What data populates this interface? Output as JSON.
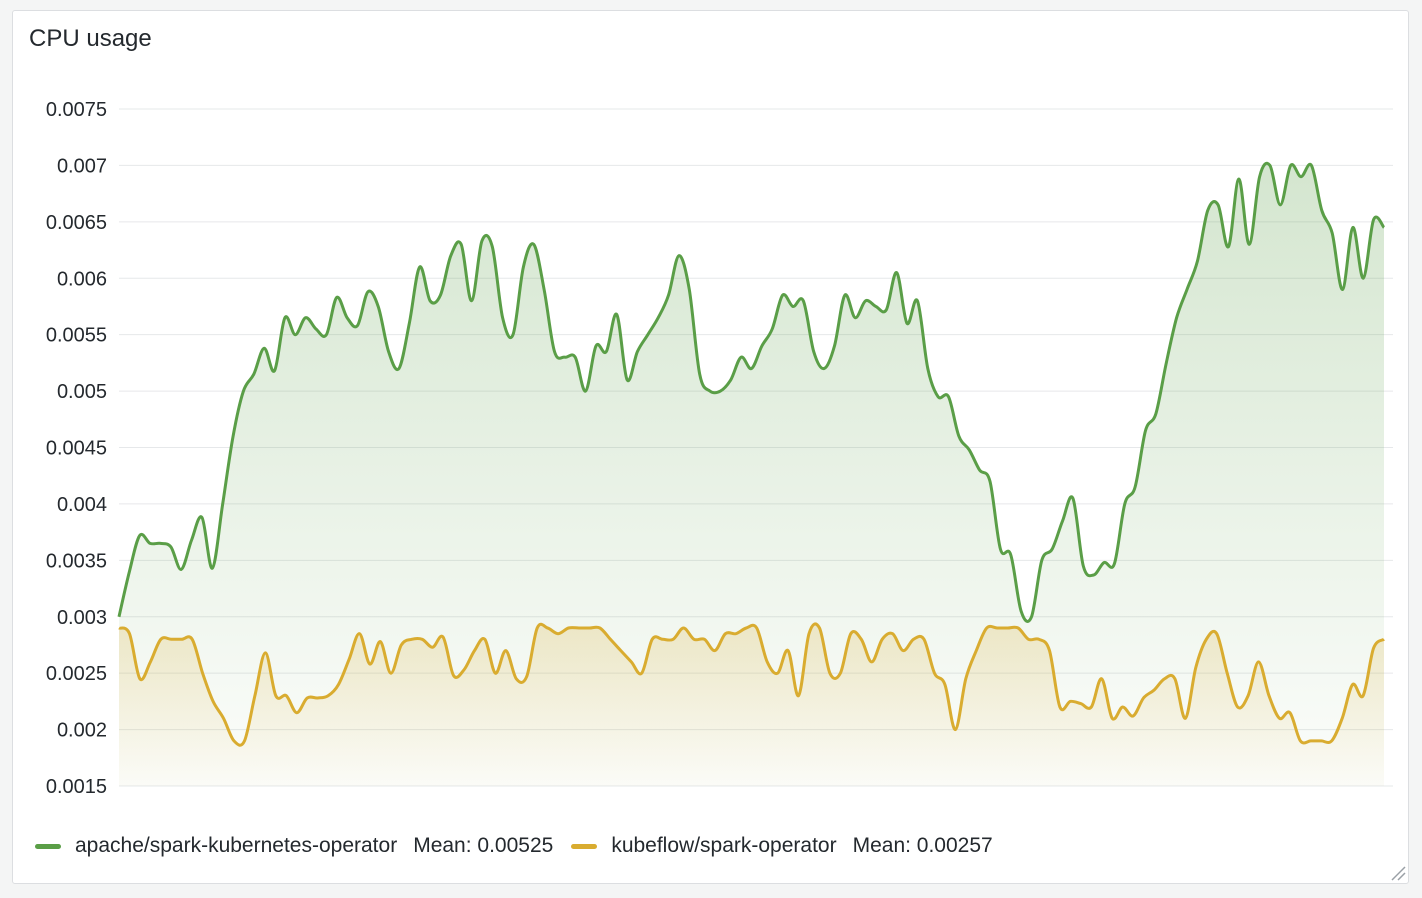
{
  "panel": {
    "title": "CPU usage"
  },
  "colors": {
    "series1": "#5a9e47",
    "series2": "#d9ac30",
    "grid": "#e6e8ea"
  },
  "chart_data": {
    "type": "area",
    "title": "CPU usage",
    "ylim": [
      0.0015,
      0.0075
    ],
    "yticks": [
      "0.0075",
      "0.007",
      "0.0065",
      "0.006",
      "0.0055",
      "0.005",
      "0.0045",
      "0.004",
      "0.0035",
      "0.003",
      "0.0025",
      "0.002",
      "0.0015"
    ],
    "grid": true,
    "legend": "bottom",
    "series": [
      {
        "name": "apache/spark-kubernetes-operator",
        "mean_label": "Mean: 0.00525",
        "color": "#5a9e47",
        "values": [
          0.003,
          0.0034,
          0.00372,
          0.00365,
          0.00365,
          0.00362,
          0.00342,
          0.00368,
          0.00388,
          0.00343,
          0.004,
          0.0046,
          0.005,
          0.00515,
          0.00538,
          0.00518,
          0.00565,
          0.0055,
          0.00565,
          0.00555,
          0.0055,
          0.00583,
          0.00565,
          0.00558,
          0.00588,
          0.00575,
          0.00535,
          0.0052,
          0.0056,
          0.0061,
          0.0058,
          0.00585,
          0.0062,
          0.0063,
          0.0058,
          0.00633,
          0.00628,
          0.00565,
          0.0055,
          0.0061,
          0.0063,
          0.0059,
          0.00535,
          0.0053,
          0.0053,
          0.005,
          0.0054,
          0.00535,
          0.00568,
          0.0051,
          0.00535,
          0.0055,
          0.00565,
          0.00585,
          0.0062,
          0.0059,
          0.00515,
          0.005,
          0.005,
          0.0051,
          0.0053,
          0.0052,
          0.0054,
          0.00555,
          0.00585,
          0.00575,
          0.0058,
          0.00535,
          0.0052,
          0.0054,
          0.00585,
          0.00565,
          0.0058,
          0.00575,
          0.00572,
          0.00605,
          0.0056,
          0.0058,
          0.0052,
          0.00495,
          0.00495,
          0.0046,
          0.00448,
          0.0043,
          0.0042,
          0.0036,
          0.00355,
          0.00305,
          0.003,
          0.0035,
          0.0036,
          0.00385,
          0.00405,
          0.00345,
          0.00337,
          0.00348,
          0.00347,
          0.004,
          0.00415,
          0.00465,
          0.0048,
          0.00525,
          0.00565,
          0.0059,
          0.00615,
          0.0066,
          0.00665,
          0.00628,
          0.00688,
          0.0063,
          0.0069,
          0.007,
          0.00665,
          0.007,
          0.0069,
          0.007,
          0.0066,
          0.0064,
          0.0059,
          0.00645,
          0.006,
          0.00652,
          0.00645
        ]
      },
      {
        "name": "kubeflow/spark-operator",
        "mean_label": "Mean: 0.00257",
        "color": "#d9ac30",
        "values": [
          0.0029,
          0.00285,
          0.00245,
          0.0026,
          0.0028,
          0.0028,
          0.0028,
          0.0028,
          0.0025,
          0.00225,
          0.0021,
          0.0019,
          0.0019,
          0.0023,
          0.00268,
          0.0023,
          0.0023,
          0.00215,
          0.00228,
          0.00228,
          0.0023,
          0.0024,
          0.00262,
          0.00285,
          0.00258,
          0.00278,
          0.0025,
          0.00275,
          0.0028,
          0.0028,
          0.00273,
          0.00282,
          0.00248,
          0.00253,
          0.0027,
          0.0028,
          0.0025,
          0.0027,
          0.00245,
          0.00247,
          0.0029,
          0.0029,
          0.00285,
          0.0029,
          0.0029,
          0.0029,
          0.0029,
          0.0028,
          0.0027,
          0.0026,
          0.0025,
          0.0028,
          0.0028,
          0.0028,
          0.0029,
          0.0028,
          0.0028,
          0.0027,
          0.00285,
          0.00285,
          0.0029,
          0.0029,
          0.0026,
          0.0025,
          0.0027,
          0.0023,
          0.00285,
          0.0029,
          0.0025,
          0.0025,
          0.00285,
          0.0028,
          0.0026,
          0.0028,
          0.00285,
          0.0027,
          0.0028,
          0.0028,
          0.0025,
          0.0024,
          0.002,
          0.00245,
          0.0027,
          0.0029,
          0.0029,
          0.0029,
          0.0029,
          0.0028,
          0.0028,
          0.0027,
          0.0022,
          0.00225,
          0.00223,
          0.0022,
          0.00245,
          0.0021,
          0.0022,
          0.00212,
          0.00228,
          0.00235,
          0.00245,
          0.00245,
          0.0021,
          0.00255,
          0.0028,
          0.00285,
          0.0025,
          0.0022,
          0.0023,
          0.0026,
          0.0023,
          0.0021,
          0.00215,
          0.0019,
          0.0019,
          0.0019,
          0.0019,
          0.0021,
          0.0024,
          0.0023,
          0.00272,
          0.0028
        ]
      }
    ]
  }
}
